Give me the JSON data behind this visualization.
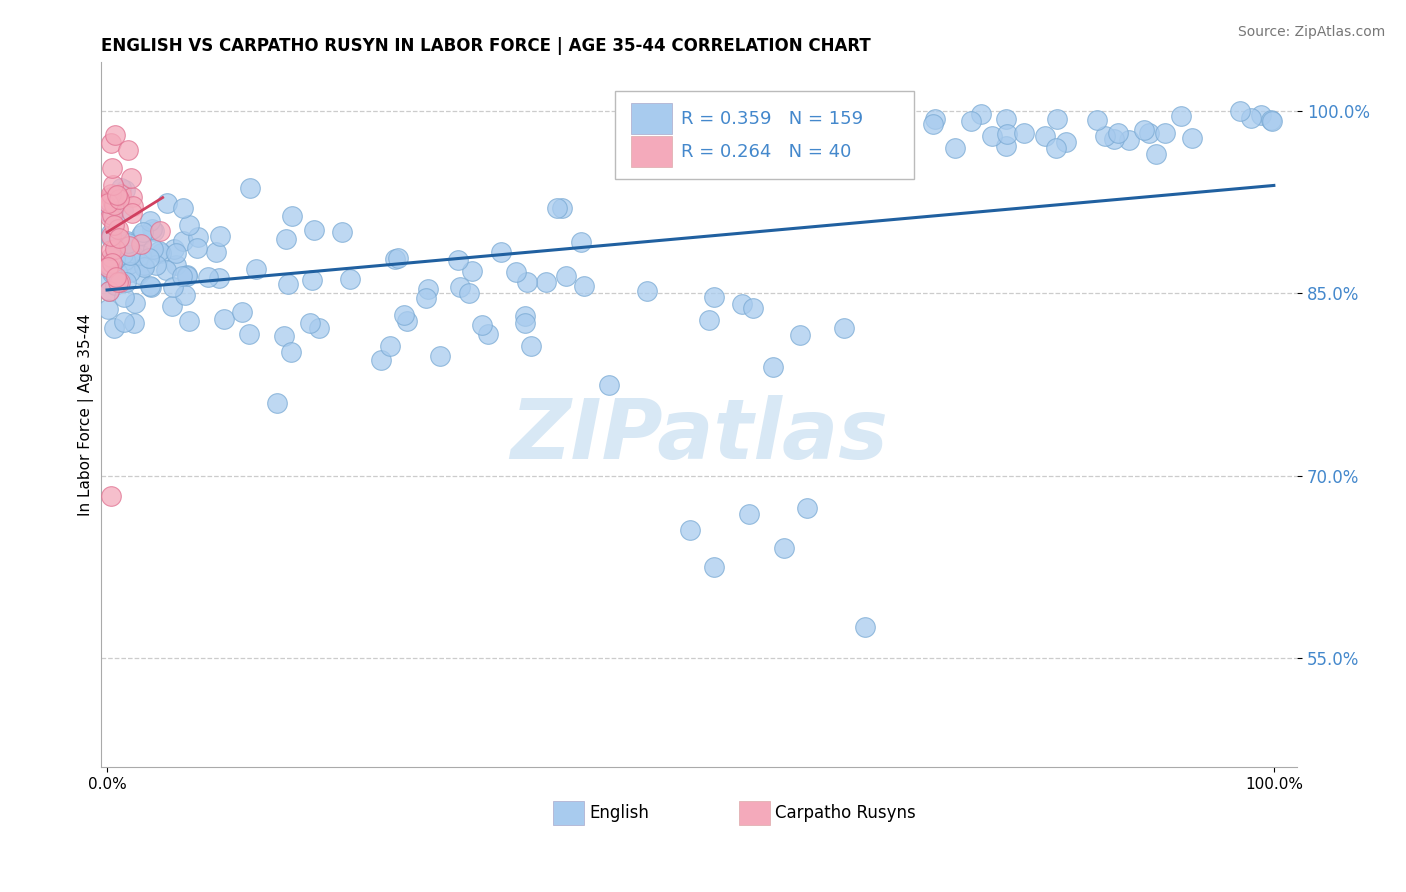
{
  "title": "ENGLISH VS CARPATHO RUSYN IN LABOR FORCE | AGE 35-44 CORRELATION CHART",
  "source": "Source: ZipAtlas.com",
  "ylabel": "In Labor Force | Age 35-44",
  "xlim": [
    -0.005,
    1.02
  ],
  "ylim": [
    0.46,
    1.04
  ],
  "yticks": [
    0.55,
    0.7,
    0.85,
    1.0
  ],
  "ytick_labels": [
    "55.0%",
    "70.0%",
    "85.0%",
    "100.0%"
  ],
  "english_R": 0.359,
  "english_N": 159,
  "rusyn_R": 0.264,
  "rusyn_N": 40,
  "blue_scatter_color": "#A8CBEE",
  "blue_edge_color": "#7AAAD4",
  "pink_scatter_color": "#F4AABB",
  "pink_edge_color": "#E07090",
  "blue_line_color": "#2060A0",
  "pink_line_color": "#D04060",
  "grid_color": "#CCCCCC",
  "background_color": "#FFFFFF",
  "ytick_color": "#4488CC",
  "watermark_color": "#D8E8F5"
}
